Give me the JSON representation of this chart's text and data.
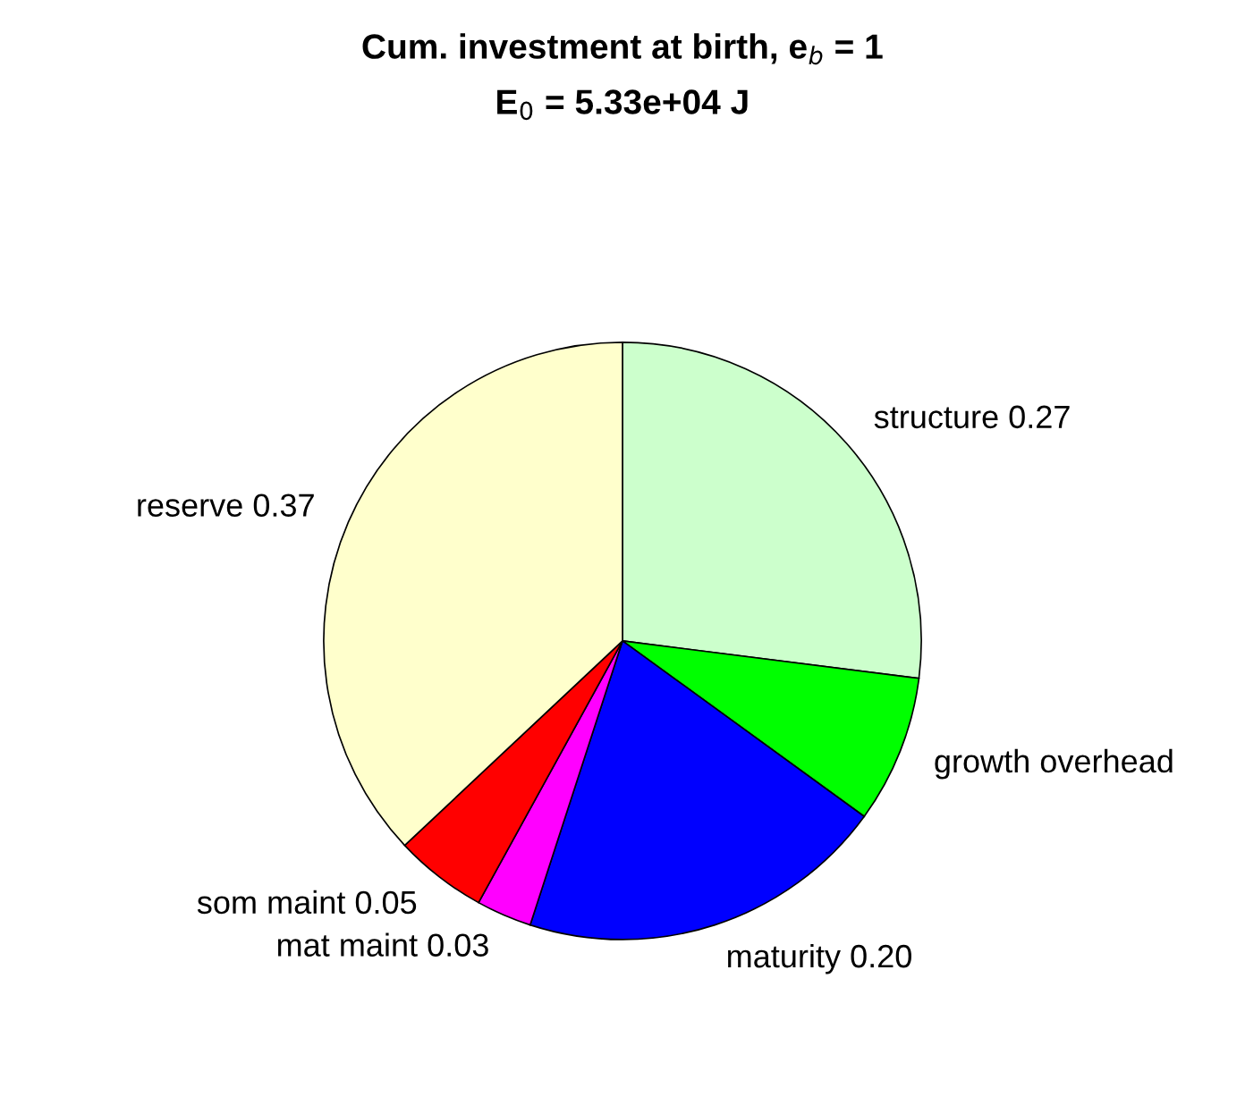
{
  "chart_data": {
    "type": "pie",
    "title": "Cum. investment at birth, e$_{b}$ = 1",
    "subtitle": "E$_{0}$ = 5.33e+04 J",
    "categories": [
      "structure",
      "growth overhead",
      "maturity",
      "mat maint",
      "som maint",
      "reserve"
    ],
    "values": [
      0.27,
      0.08,
      0.2,
      0.03,
      0.05,
      0.37
    ],
    "value_labels": [
      "0.27",
      null,
      "0.20",
      "0.03",
      "0.05",
      "0.37"
    ],
    "colors": [
      "#ccffcc",
      "#00ff00",
      "#0000ff",
      "#ff00ff",
      "#ff0000",
      "#ffffcc"
    ],
    "legend": false
  }
}
